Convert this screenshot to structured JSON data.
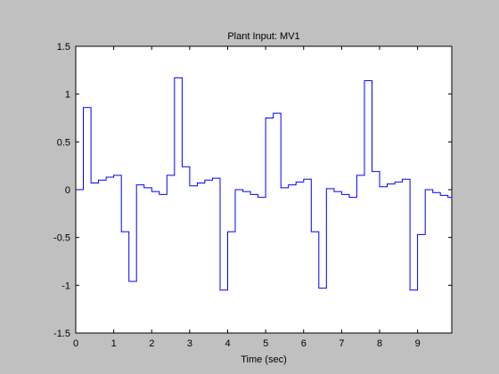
{
  "chart_data": {
    "type": "line",
    "step": true,
    "title": "Plant Input:  MV1",
    "xlabel": "Time (sec)",
    "ylabel": "",
    "xlim": [
      0,
      9.9
    ],
    "ylim": [
      -1.5,
      1.5
    ],
    "xticks": [
      0,
      1,
      2,
      3,
      4,
      5,
      6,
      7,
      8,
      9
    ],
    "xtick_labels": [
      "0",
      "1",
      "2",
      "3",
      "4",
      "5",
      "6",
      "7",
      "8",
      "9"
    ],
    "yticks": [
      -1.5,
      -1,
      -0.5,
      0,
      0.5,
      1,
      1.5
    ],
    "ytick_labels": [
      "-1.5",
      "-1",
      "-0.5",
      "0",
      "0.5",
      "1",
      "1.5"
    ],
    "grid": false,
    "background": "#c0c0c0",
    "axes_background": "#ffffff",
    "series": [
      {
        "color": "#0000ff",
        "x": [
          0,
          0.2,
          0.4,
          0.6,
          0.8,
          1.0,
          1.2,
          1.4,
          1.6,
          1.8,
          2.0,
          2.2,
          2.4,
          2.6,
          2.8,
          3.0,
          3.2,
          3.4,
          3.6,
          3.8,
          4.0,
          4.2,
          4.4,
          4.6,
          4.8,
          5.0,
          5.2,
          5.4,
          5.6,
          5.8,
          6.0,
          6.2,
          6.4,
          6.6,
          6.8,
          7.0,
          7.2,
          7.4,
          7.6,
          7.8,
          8.0,
          8.2,
          8.4,
          8.6,
          8.8,
          9.0,
          9.2,
          9.4,
          9.6,
          9.8
        ],
        "y": [
          0.0,
          0.86,
          0.07,
          0.1,
          0.13,
          0.15,
          -0.44,
          -0.96,
          0.05,
          0.02,
          -0.02,
          -0.05,
          0.15,
          1.17,
          0.24,
          0.04,
          0.07,
          0.1,
          0.12,
          -1.05,
          -0.44,
          0.0,
          -0.02,
          -0.05,
          -0.08,
          0.75,
          0.8,
          0.02,
          0.05,
          0.08,
          0.11,
          -0.44,
          -1.03,
          0.01,
          -0.02,
          -0.05,
          -0.08,
          0.15,
          1.14,
          0.19,
          0.03,
          0.06,
          0.08,
          0.11,
          -1.05,
          -0.47,
          0.0,
          -0.03,
          -0.06,
          -0.08
        ]
      }
    ]
  }
}
